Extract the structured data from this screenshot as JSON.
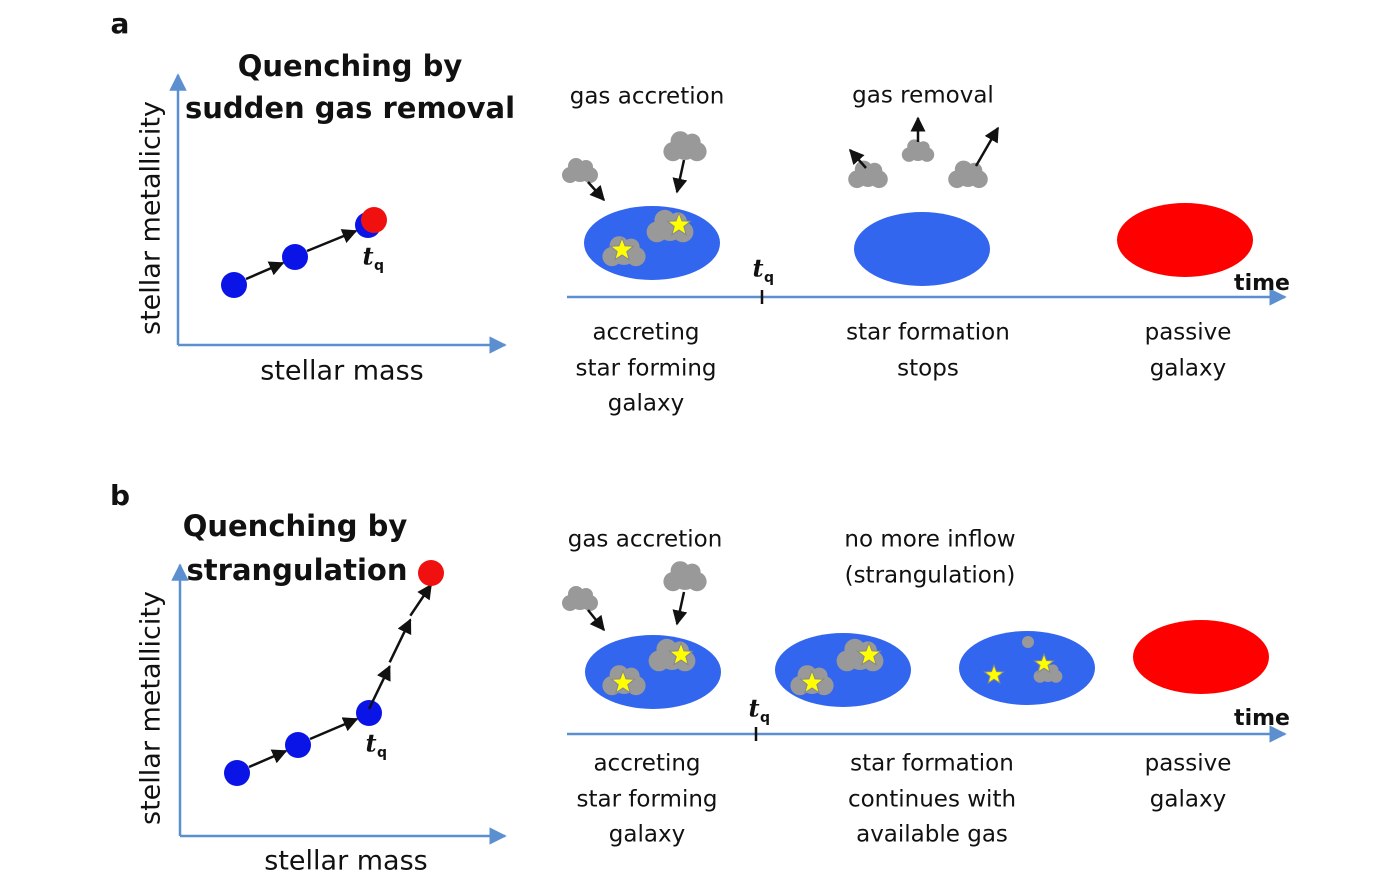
{
  "panels": [
    {
      "label": "a",
      "title": [
        "Quenching by",
        "sudden gas removal"
      ],
      "y_axis": "stellar metallicity",
      "x_axis": "stellar mass",
      "t_symbol": "t",
      "t_subscript": "q",
      "annotations": [
        [
          "gas accretion"
        ],
        [
          "gas removal"
        ]
      ],
      "time_label": "time",
      "stages": [
        [
          "accreting",
          "star forming",
          "galaxy"
        ],
        [
          "star formation",
          "stops"
        ],
        [
          "passive",
          "galaxy"
        ]
      ]
    },
    {
      "label": "b",
      "title": [
        "Quenching by",
        "strangulation"
      ],
      "y_axis": "stellar metallicity",
      "x_axis": "stellar mass",
      "t_symbol": "t",
      "t_subscript": "q",
      "annotations": [
        [
          "gas accretion"
        ],
        [
          "no more inflow",
          "(strangulation)"
        ]
      ],
      "time_label": "time",
      "stages": [
        [
          "accreting",
          "star forming",
          "galaxy"
        ],
        [
          "star formation",
          "continues with",
          "available gas"
        ],
        [
          "passive",
          "galaxy"
        ]
      ]
    }
  ]
}
